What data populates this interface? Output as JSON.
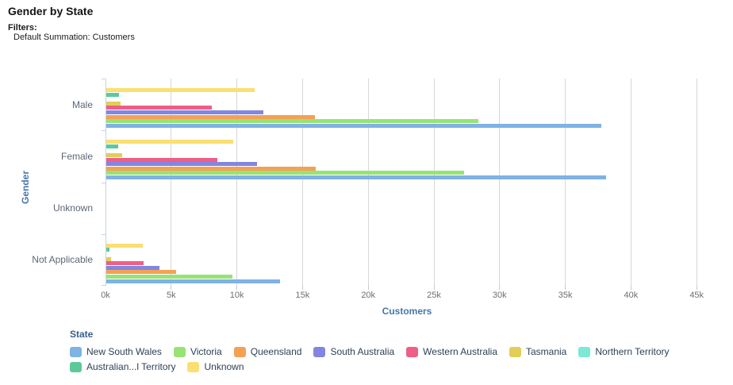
{
  "header": {
    "title": "Gender by State",
    "filters_label": "Filters:",
    "filter_value": "Default Summation: Customers"
  },
  "chart_data": {
    "type": "bar",
    "orientation": "horizontal",
    "title": "Gender by State",
    "xlabel": "Customers",
    "ylabel": "Gender",
    "xlim": [
      0,
      45900
    ],
    "grid": "vertical",
    "legend_position": "bottom",
    "categories": [
      "Male",
      "Female",
      "Unknown",
      "Not Applicable"
    ],
    "series": [
      {
        "name": "New South Wales",
        "color": "#7FB2E5",
        "values": [
          37700,
          38050,
          0,
          13200
        ]
      },
      {
        "name": "Victoria",
        "color": "#97E376",
        "values": [
          28300,
          27250,
          0,
          9600
        ]
      },
      {
        "name": "Queensland",
        "color": "#F5A054",
        "values": [
          15900,
          15950,
          0,
          5300
        ]
      },
      {
        "name": "South Australia",
        "color": "#8285E2",
        "values": [
          11950,
          11450,
          0,
          4050
        ]
      },
      {
        "name": "Western Australia",
        "color": "#EE5E86",
        "values": [
          8050,
          8450,
          0,
          2850
        ]
      },
      {
        "name": "Tasmania",
        "color": "#E2CE55",
        "values": [
          1100,
          1200,
          0,
          350
        ]
      },
      {
        "name": "Northern Territory",
        "color": "#7BE9D3",
        "values": [
          0,
          0,
          0,
          0
        ]
      },
      {
        "name": "Australian...l Territory",
        "color": "#5DC99B",
        "values": [
          950,
          900,
          0,
          250
        ]
      },
      {
        "name": "Unknown",
        "color": "#FBDF71",
        "values": [
          11300,
          9650,
          0,
          2800
        ]
      }
    ],
    "x_ticks": [
      {
        "label": "0k",
        "k": 0
      },
      {
        "label": "5k",
        "k": 5
      },
      {
        "label": "10k",
        "k": 10
      },
      {
        "label": "15k",
        "k": 15
      },
      {
        "label": "20k",
        "k": 20
      },
      {
        "label": "25k",
        "k": 25
      },
      {
        "label": "30k",
        "k": 30
      },
      {
        "label": "35k",
        "k": 35
      },
      {
        "label": "40k",
        "k": 40
      },
      {
        "label": "45k",
        "k": 45
      }
    ]
  },
  "axes": {
    "x_title": "Customers",
    "y_title": "Gender"
  },
  "legend": {
    "title": "State",
    "rows": [
      [
        "New South Wales",
        "Victoria",
        "Queensland",
        "South Australia",
        "Western Australia",
        "Tasmania",
        "Northern Territory"
      ],
      [
        "Australian...l Territory",
        "Unknown"
      ]
    ]
  }
}
